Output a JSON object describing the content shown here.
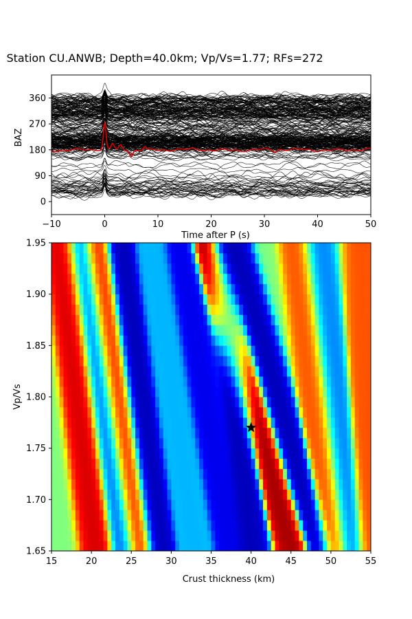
{
  "chart_data": [
    {
      "type": "line",
      "title": "Station CU.ANWB; Depth=40.0km; Vp/Vs=1.77; RFs=272",
      "xlabel": "Time after P (s)",
      "ylabel": "BAZ",
      "xlim": [
        -10,
        50
      ],
      "ylim": [
        -45,
        440
      ],
      "x_ticks": [
        "−10",
        "0",
        "10",
        "20",
        "30",
        "40",
        "50"
      ],
      "x_tick_values": [
        -10,
        0,
        10,
        20,
        30,
        40,
        50
      ],
      "y_ticks": [
        "0",
        "90",
        "180",
        "270",
        "360"
      ],
      "y_tick_values": [
        0,
        90,
        180,
        270,
        360
      ],
      "trace_count": 272,
      "trace_color": "#000000",
      "stack_color": "#e00000",
      "stack_baseline": 180,
      "stack_peaks": [
        {
          "time": 0,
          "amplitude": 90
        },
        {
          "time": 1.5,
          "amplitude": 20
        },
        {
          "time": 3,
          "amplitude": 15
        },
        {
          "time": 5,
          "amplitude": -20
        },
        {
          "time": 7.5,
          "amplitude": 12
        },
        {
          "time": 32,
          "amplitude": -8
        }
      ],
      "grid": false
    },
    {
      "type": "heatmap",
      "xlabel": "Crust thickness (km)",
      "ylabel": "Vp/Vs",
      "xlim": [
        15,
        55
      ],
      "ylim": [
        1.65,
        1.95
      ],
      "x_ticks": [
        "15",
        "20",
        "25",
        "30",
        "35",
        "40",
        "45",
        "50",
        "55"
      ],
      "x_tick_values": [
        15,
        20,
        25,
        30,
        35,
        40,
        45,
        50,
        55
      ],
      "y_ticks": [
        "1.65",
        "1.70",
        "1.75",
        "1.80",
        "1.85",
        "1.90",
        "1.95"
      ],
      "y_tick_values": [
        1.65,
        1.7,
        1.75,
        1.8,
        1.85,
        1.9,
        1.95
      ],
      "colormap": "jet",
      "best_fit": {
        "thickness": 40.0,
        "vpvs": 1.77,
        "marker": "star",
        "color": "#000000"
      },
      "bands": [
        {
          "thickness_at_low": 21.0,
          "thickness_at_high": 16.5,
          "value": 0.92
        },
        {
          "thickness_at_low": 24.0,
          "thickness_at_high": 18.5,
          "value": 0.22
        },
        {
          "thickness_at_low": 26.0,
          "thickness_at_high": 20.5,
          "value": 0.85
        },
        {
          "thickness_at_low": 28.5,
          "thickness_at_high": 23.5,
          "value": 0.05
        },
        {
          "thickness_at_low": 33.0,
          "thickness_at_high": 27.5,
          "value": 0.3
        },
        {
          "thickness_at_low": 37.5,
          "thickness_at_high": 31.0,
          "value": 0.1
        },
        {
          "thickness_at_low": 40.0,
          "thickness_at_high": 36.5,
          "value": 0.05
        },
        {
          "thickness_at_low": 45.5,
          "thickness_at_high": 34.5,
          "value": 0.97
        },
        {
          "thickness_at_low": 48.5,
          "thickness_at_high": 37.5,
          "value": 0.05
        },
        {
          "thickness_at_low": 50.5,
          "thickness_at_high": 46.0,
          "value": 0.8
        },
        {
          "thickness_at_low": 52.5,
          "thickness_at_high": 48.0,
          "value": 0.25
        },
        {
          "thickness_at_low": 55.0,
          "thickness_at_high": 54.0,
          "value": 0.8
        }
      ],
      "grid": false
    }
  ]
}
